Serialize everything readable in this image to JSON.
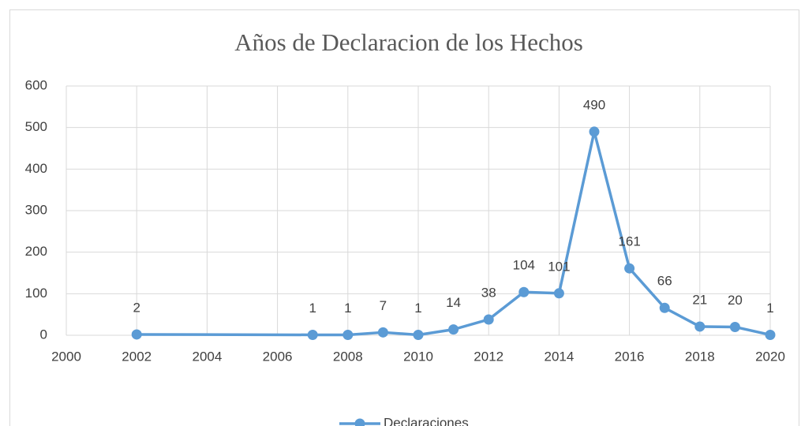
{
  "chart_data": {
    "type": "line",
    "title": "Años de Declaracion de los Hechos",
    "x": [
      2002,
      2007,
      2008,
      2009,
      2010,
      2011,
      2012,
      2013,
      2014,
      2015,
      2016,
      2017,
      2018,
      2019,
      2020
    ],
    "series": [
      {
        "name": "Declaraciones",
        "color": "#5b9bd5",
        "values": [
          2,
          1,
          1,
          7,
          1,
          14,
          38,
          104,
          101,
          490,
          161,
          66,
          21,
          20,
          1
        ]
      }
    ],
    "xlim": [
      2000,
      2020
    ],
    "xticks": [
      2000,
      2002,
      2004,
      2006,
      2008,
      2010,
      2012,
      2014,
      2016,
      2018,
      2020
    ],
    "ylim": [
      0,
      600
    ],
    "yticks": [
      0,
      100,
      200,
      300,
      400,
      500,
      600
    ],
    "grid": true,
    "legend": "bottom",
    "data_labels": true
  }
}
